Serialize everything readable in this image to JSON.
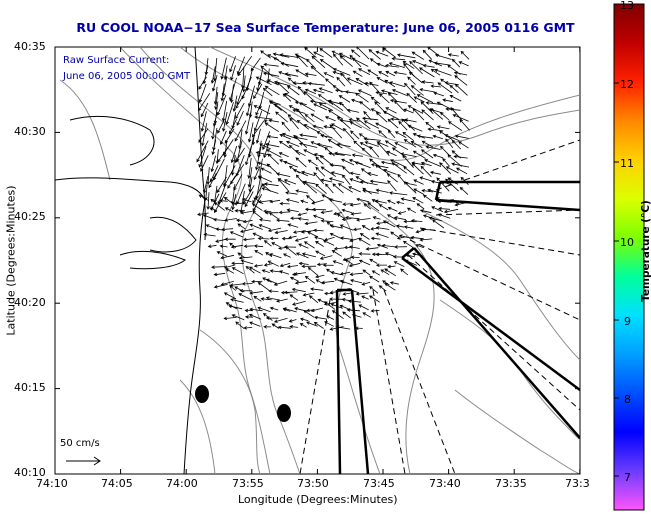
{
  "title": "RU COOL  NOAA−17  Sea Surface Temperature:  June 06, 2005 0116 GMT",
  "title_color": "#0000aa",
  "annotation": {
    "line1": "Raw Surface Current:",
    "line2": "June 06, 2005 00:00 GMT",
    "color": "#0000aa"
  },
  "scale": {
    "label": "50 cm/s"
  },
  "axes": {
    "xlabel": "Longitude (Degrees:Minutes)",
    "ylabel": "Latitude (Degrees:Minutes)",
    "x_ticks": [
      "74:10",
      "74:05",
      "74:00",
      "73:55",
      "73:50",
      "73:45",
      "73:40",
      "73:35",
      "73:3"
    ],
    "y_ticks": [
      "40:35",
      "40:30",
      "40:25",
      "40:20",
      "40:15",
      "40:10"
    ]
  },
  "colorbar": {
    "label": "Temperature (°C)",
    "ticks": [
      "13",
      "12",
      "11",
      "10",
      "9",
      "8",
      "7"
    ],
    "range": [
      6.6,
      13
    ],
    "colors": [
      "#ff55ff",
      "#6c3cff",
      "#0000ff",
      "#0050ff",
      "#00a0ff",
      "#00e0ff",
      "#00ff9a",
      "#7cff00",
      "#dcff00",
      "#ffd000",
      "#ff8800",
      "#ff2000",
      "#c00000",
      "#800000"
    ]
  },
  "map_features": [
    "coastline",
    "bathymetry-contours",
    "shipping-lanes",
    "current-vectors",
    "buoys"
  ]
}
